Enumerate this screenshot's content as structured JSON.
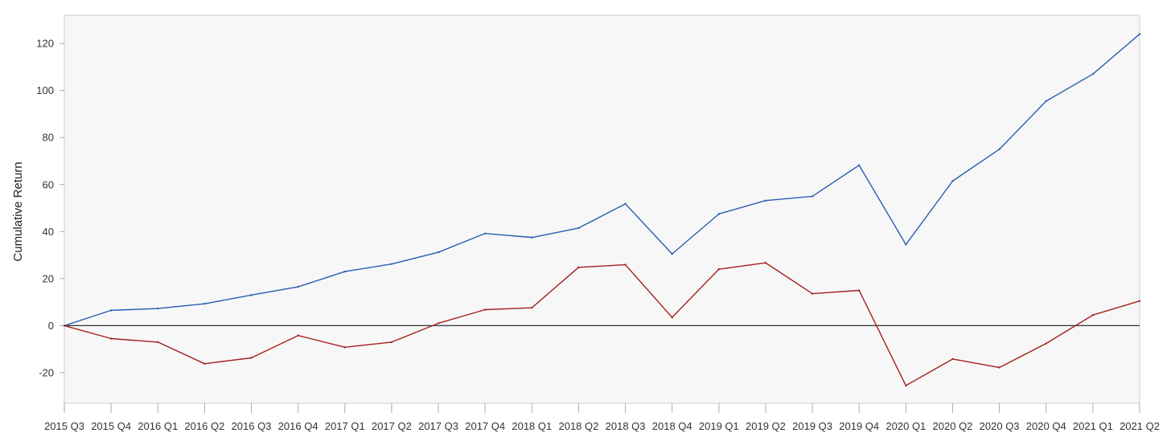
{
  "chart_data": {
    "type": "line",
    "title": "",
    "xlabel": "",
    "ylabel": "Cumulative Return",
    "ylim": [
      -33,
      132
    ],
    "yticks": [
      -20,
      0,
      20,
      40,
      60,
      80,
      100,
      120
    ],
    "grid": false,
    "legend": "none",
    "categories": [
      "2015 Q3",
      "2015 Q4",
      "2016 Q1",
      "2016 Q2",
      "2016 Q3",
      "2016 Q4",
      "2017 Q1",
      "2017 Q2",
      "2017 Q3",
      "2017 Q4",
      "2018 Q1",
      "2018 Q2",
      "2018 Q3",
      "2018 Q4",
      "2019 Q1",
      "2019 Q2",
      "2019 Q3",
      "2019 Q4",
      "2020 Q1",
      "2020 Q2",
      "2020 Q3",
      "2020 Q4",
      "2021 Q1",
      "2021 Q2"
    ],
    "series": [
      {
        "color": "#2a5db0",
        "values": [
          0,
          6.5,
          7.3,
          9.3,
          13,
          16.5,
          23,
          26.2,
          31.2,
          39.2,
          37.5,
          41.5,
          51.8,
          30.5,
          47.5,
          53.2,
          55,
          68.2,
          34.5,
          61.5,
          75,
          95.5,
          107,
          124
        ]
      },
      {
        "color": "#a3201d",
        "values": [
          0,
          -5.5,
          -7,
          -16.2,
          -13.7,
          -4.2,
          -9.2,
          -7,
          1,
          6.8,
          7.6,
          24.8,
          25.9,
          3.5,
          24,
          26.7,
          13.6,
          15,
          -25.5,
          -14.2,
          -17.8,
          -7.6,
          4.5,
          10.5
        ]
      }
    ],
    "zero_line_color": "#333333",
    "plot_background": "#f7f7f7",
    "frame_color": "#cccccc"
  }
}
